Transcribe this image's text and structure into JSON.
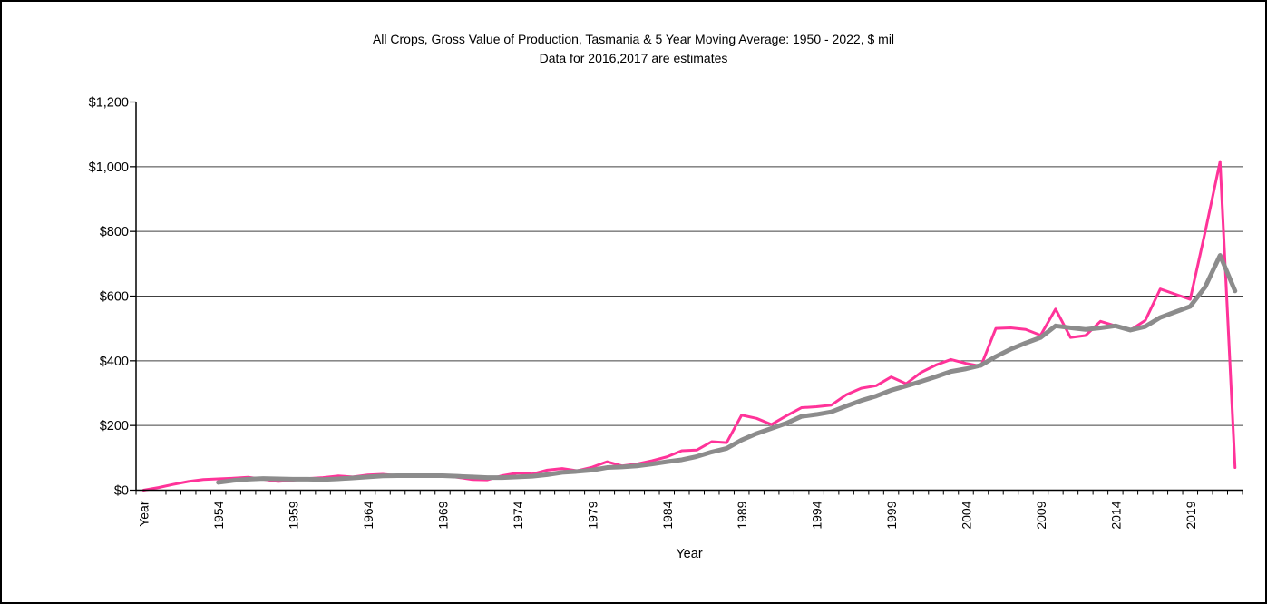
{
  "colors": {
    "background": "#FFFFFF",
    "border": "#000000",
    "axis": "#000000",
    "gridline": "#404040",
    "series_pink": "#FF3399",
    "series_gray": "#8C8C8C"
  },
  "chart_data": {
    "type": "line",
    "title": "All Crops, Gross Value of Production, Tasmania & 5  Year Moving Average: 1950 - 2022, $ mil",
    "subtitle": "Data for 2016,2017 are estimates",
    "xlabel": "Year",
    "ylabel": "",
    "ylim": [
      0,
      1200
    ],
    "grid": "horizontal",
    "legend": "none",
    "y_tick_values": [
      0,
      200,
      400,
      600,
      800,
      1000,
      1200
    ],
    "y_tick_labels": [
      "$0",
      "$200",
      "$400",
      "$600",
      "$800",
      "$1,000",
      "$1,200"
    ],
    "x_tick_every": 5,
    "x_tick_labels_shown": [
      "Year",
      "1954",
      "1959",
      "1964",
      "1969",
      "1974",
      "1979",
      "1984",
      "1989",
      "1994",
      "1999",
      "2004",
      "2009",
      "2014",
      "2019"
    ],
    "categories": [
      "Year",
      "1950",
      "1951",
      "1952",
      "1953",
      "1954",
      "1955",
      "1956",
      "1957",
      "1958",
      "1959",
      "1960",
      "1961",
      "1962",
      "1963",
      "1964",
      "1965",
      "1966",
      "1967",
      "1968",
      "1969",
      "1970",
      "1971",
      "1972",
      "1973",
      "1974",
      "1975",
      "1976",
      "1977",
      "1978",
      "1979",
      "1980",
      "1981",
      "1982",
      "1983",
      "1984",
      "1985",
      "1986",
      "1987",
      "1988",
      "1989",
      "1990",
      "1991",
      "1992",
      "1993",
      "1994",
      "1995",
      "1996",
      "1997",
      "1998",
      "1999",
      "2000",
      "2001",
      "2002",
      "2003",
      "2004",
      "2005",
      "2006",
      "2007",
      "2008",
      "2009",
      "2010",
      "2011",
      "2012",
      "2013",
      "2014",
      "2015",
      "2016",
      "2017",
      "2018",
      "2019",
      "2020",
      "2021",
      "2022"
    ],
    "series": [
      {
        "name": "All Crops, Gross Value of Production",
        "color": "#FF3399",
        "stroke_width": 3,
        "values": [
          0,
          8,
          18,
          27,
          33,
          35,
          37,
          40,
          34,
          27,
          31,
          36,
          39,
          44,
          41,
          47,
          49,
          45,
          42,
          44,
          45,
          40,
          33,
          32,
          45,
          53,
          50,
          62,
          67,
          60,
          71,
          88,
          75,
          81,
          91,
          103,
          122,
          124,
          150,
          147,
          232,
          222,
          203,
          230,
          255,
          258,
          263,
          295,
          315,
          323,
          350,
          329,
          364,
          387,
          404,
          392,
          383,
          500,
          502,
          497,
          479,
          560,
          472,
          478,
          522,
          508,
          495,
          525,
          622,
          606,
          590,
          798,
          1016,
          70
        ]
      },
      {
        "name": "5 Year Moving Average",
        "color": "#8C8C8C",
        "stroke_width": 5,
        "values": [
          null,
          null,
          null,
          null,
          null,
          24,
          30,
          34,
          36,
          35,
          34,
          34,
          33,
          35,
          38,
          41,
          44,
          45,
          45,
          45,
          45,
          43,
          41,
          39,
          39,
          41,
          43,
          48,
          55,
          58,
          62,
          70,
          72,
          75,
          81,
          88,
          94,
          104,
          118,
          129,
          155,
          175,
          191,
          207,
          228,
          234,
          242,
          260,
          277,
          291,
          309,
          322,
          336,
          351,
          367,
          375,
          386,
          413,
          436,
          455,
          472,
          508,
          502,
          497,
          502,
          508,
          495,
          506,
          534,
          551,
          568,
          628,
          726,
          616
        ]
      }
    ]
  }
}
